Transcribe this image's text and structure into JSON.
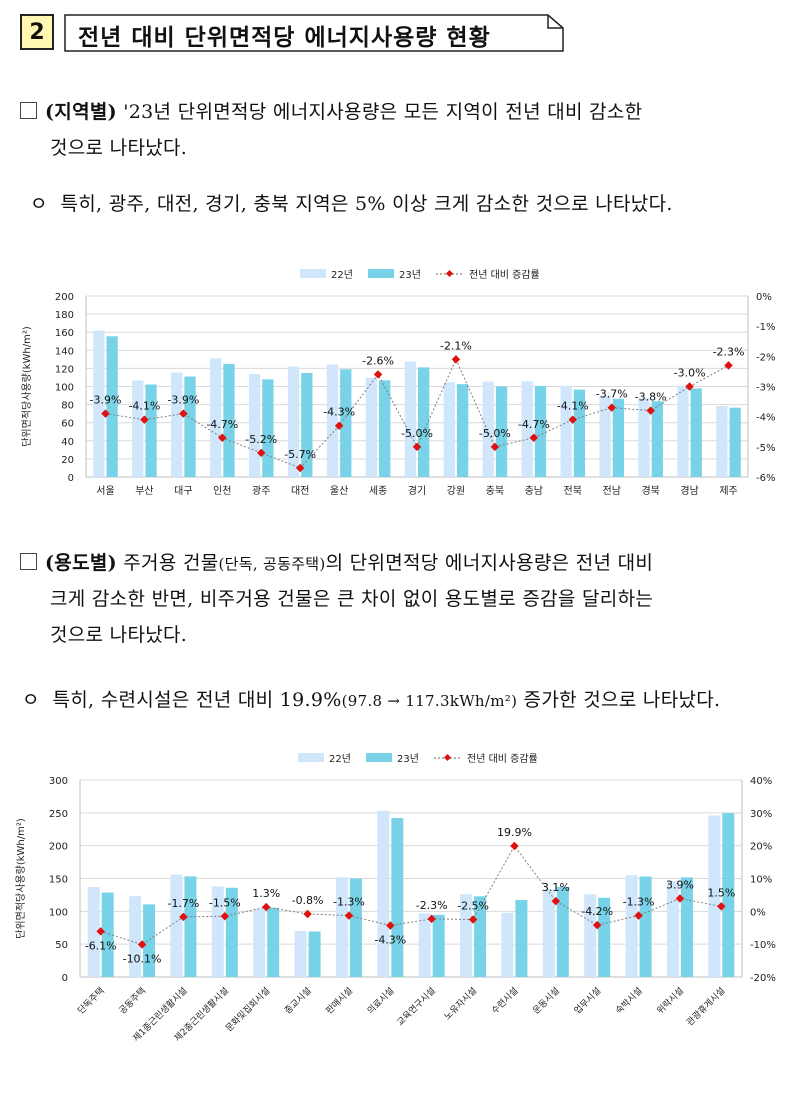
{
  "section": {
    "number": "2",
    "title": "전년 대비 단위면적당 에너지사용량 현황"
  },
  "p1": {
    "tag": "(지역별)",
    "line1": " '23년 단위면적당 에너지사용량은 모든 지역이 전년 대비 감소한",
    "line2": "것으로 나타났다."
  },
  "p1b": {
    "bullet": "ㅇ",
    "text": "특히, 광주, 대전, 경기, 충북 지역은 5% 이상 크게 감소한 것으로 나타났다."
  },
  "p2": {
    "tag": "(용도별)",
    "line1a": " 주거용 건물",
    "line1b": "(단독, 공동주택)",
    "line1c": "의 단위면적당 에너지사용량은 전년 대비",
    "line2": "크게 감소한 반면, 비주거용 건물은 큰 차이 없이 용도별로 증감을 달리하는",
    "line3": "것으로 나타났다."
  },
  "p2b": {
    "bullet": "ㅇ",
    "text1": "특히, 수련시설은 전년 대비 19.9%",
    "text2": "(97.8 → 117.3kWh/m²)",
    "text3": " 증가한 것으로 나타났다."
  },
  "chart_data": [
    {
      "type": "bar",
      "legend": [
        "22년",
        "23년",
        "전년 대비 증감률"
      ],
      "categories": [
        "서울",
        "부산",
        "대구",
        "인천",
        "광주",
        "대전",
        "울산",
        "세종",
        "경기",
        "강원",
        "충북",
        "충남",
        "전북",
        "전남",
        "경북",
        "경남",
        "제주"
      ],
      "series": [
        {
          "name": "22년",
          "values": [
            161.8,
            106.6,
            115.5,
            131.2,
            113.8,
            122.0,
            124.4,
            109.7,
            127.5,
            104.8,
            105.4,
            105.6,
            100.7,
            89.7,
            87.0,
            100.9,
            78.4
          ],
          "color": "#cfe6fb"
        },
        {
          "name": "23년",
          "values": [
            155.5,
            102.2,
            111.0,
            125.0,
            107.9,
            115.0,
            119.0,
            106.8,
            121.1,
            102.6,
            100.1,
            100.6,
            96.6,
            86.4,
            83.7,
            97.9,
            76.6
          ],
          "color": "#78d3e8"
        },
        {
          "name": "전년 대비 증감률",
          "values": [
            -3.9,
            -4.1,
            -3.9,
            -4.7,
            -5.2,
            -5.7,
            -4.3,
            -2.6,
            -5.0,
            -2.1,
            -5.0,
            -4.7,
            -4.1,
            -3.7,
            -3.8,
            -3.0,
            -2.3
          ],
          "color": "#e0120f"
        }
      ],
      "labels": [
        "-3.9%",
        "-4.1%",
        "-3.9%",
        "-4.7%",
        "-5.2%",
        "-5.7%",
        "-4.3%",
        "-2.6%",
        "-5.0%",
        "-2.1%",
        "-5.0%",
        "-4.7%",
        "-4.1%",
        "-3.7%",
        "-3.8%",
        "-3.0%",
        "-2.3%"
      ],
      "ylabel": "단위면적당사용량(kWh/m²)",
      "ylim": [
        0,
        200
      ],
      "yticks": [
        "0",
        "20",
        "40",
        "60",
        "80",
        "100",
        "120",
        "140",
        "160",
        "180",
        "200"
      ],
      "y2lim": [
        -6,
        0
      ],
      "y2ticks": [
        "-6%",
        "-5%",
        "-4%",
        "-3%",
        "-2%",
        "-1%",
        "0%"
      ]
    },
    {
      "type": "bar",
      "legend": [
        "22년",
        "23년",
        "전년 대비 증감률"
      ],
      "categories": [
        "단독주택",
        "공동주택",
        "제1종근린생활시설",
        "제2종근린생활시설",
        "문화및집회시설",
        "종교시설",
        "판매시설",
        "의료시설",
        "교육연구시설",
        "노유자시설",
        "수련시설",
        "운동시설",
        "업무시설",
        "숙박시설",
        "위락시설",
        "관광휴게시설"
      ],
      "series": [
        {
          "name": "22년",
          "values": [
            137,
            123,
            156,
            138,
            104,
            70,
            152,
            253,
            97,
            126,
            97.8,
            133,
            126,
            155,
            146,
            246
          ],
          "color": "#cfe6fb"
        },
        {
          "name": "23년",
          "values": [
            128.6,
            110.6,
            153.3,
            135.9,
            105.4,
            69.4,
            150.0,
            242.1,
            94.8,
            122.9,
            117.3,
            137.1,
            120.7,
            153.0,
            151.7,
            249.7
          ],
          "color": "#78d3e8"
        },
        {
          "name": "전년 대비 증감률",
          "values": [
            -6.1,
            -10.1,
            -1.7,
            -1.5,
            1.3,
            -0.8,
            -1.3,
            -4.3,
            -2.3,
            -2.5,
            19.9,
            3.1,
            -4.2,
            -1.3,
            3.9,
            1.5
          ],
          "color": "#e0120f"
        }
      ],
      "labels": [
        "-6.1%",
        "-10.1%",
        "-1.7%",
        "-1.5%",
        "1.3%",
        "-0.8%",
        "-1.3%",
        "-4.3%",
        "-2.3%",
        "-2.5%",
        "19.9%",
        "3.1%",
        "-4.2%",
        "-1.3%",
        "3.9%",
        "1.5%"
      ],
      "ylabel": "단위면적당사용량(kWh/m²)",
      "ylim": [
        0,
        300
      ],
      "yticks": [
        "0",
        "50",
        "100",
        "150",
        "200",
        "250",
        "300"
      ],
      "y2lim": [
        -20,
        40
      ],
      "y2ticks": [
        "-20%",
        "-10%",
        "0%",
        "10%",
        "20%",
        "30%",
        "40%"
      ]
    }
  ]
}
